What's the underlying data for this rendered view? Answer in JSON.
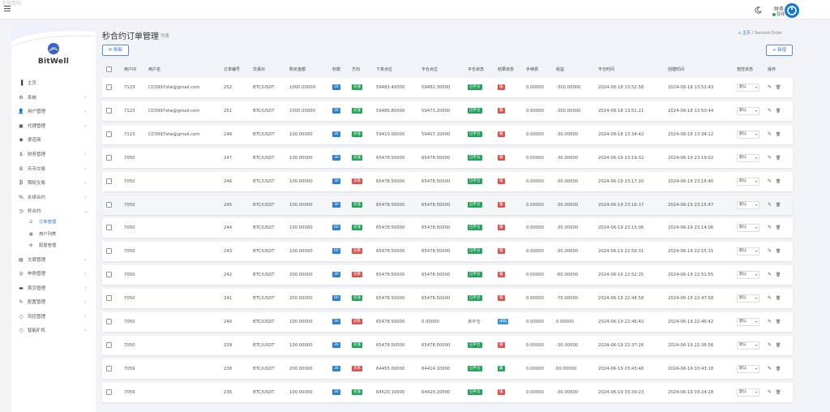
{
  "topbar": {
    "watermark": "无限看网",
    "user_name": "财务",
    "user_status": "在线"
  },
  "sidebar": {
    "brand": "BitWell",
    "items": [
      {
        "icon": "bar-chart-icon",
        "glyph": "▐",
        "label": "主页",
        "chevron": ""
      },
      {
        "icon": "gear-icon",
        "glyph": "⚙",
        "label": "系统",
        "chevron": "‹"
      },
      {
        "icon": "user-icon",
        "glyph": "👤",
        "label": "用户管理",
        "chevron": "‹"
      },
      {
        "icon": "id-card-icon",
        "glyph": "▣",
        "label": "代理管理",
        "chevron": "‹"
      },
      {
        "icon": "user-circle-icon",
        "glyph": "◉",
        "label": "渠道商",
        "chevron": ""
      },
      {
        "icon": "dollar-icon",
        "glyph": "$",
        "label": "财务管理",
        "chevron": "‹"
      },
      {
        "icon": "bitcoin-icon",
        "glyph": "B",
        "label": "币币交易",
        "chevron": "‹"
      },
      {
        "icon": "bitcoin-circle-icon",
        "glyph": "₿",
        "label": "期权交易",
        "chevron": "‹"
      },
      {
        "icon": "link-icon",
        "glyph": "%",
        "label": "永续合约",
        "chevron": "‹"
      },
      {
        "icon": "clock-icon",
        "glyph": "◷",
        "label": "秒合约",
        "chevron": "⌄"
      }
    ],
    "sub_items": [
      {
        "icon": "list-icon",
        "glyph": "☰",
        "label": "订单管理"
      },
      {
        "icon": "table-icon",
        "glyph": "▦",
        "label": "用户列表"
      },
      {
        "icon": "cog-icon",
        "glyph": "⚙",
        "label": "配置管理"
      }
    ],
    "items_after": [
      {
        "icon": "newspaper-icon",
        "glyph": "▤",
        "label": "文章管理",
        "chevron": "‹"
      },
      {
        "icon": "globe-icon",
        "glyph": "◎",
        "label": "申购管理",
        "chevron": "‹"
      },
      {
        "icon": "window-icon",
        "glyph": "▬",
        "label": "首页管理",
        "chevron": "‹"
      },
      {
        "icon": "wrench-icon",
        "glyph": "✎",
        "label": "配置管理",
        "chevron": "‹"
      },
      {
        "icon": "circle-icon",
        "glyph": "○",
        "label": "风控管理",
        "chevron": "‹"
      },
      {
        "icon": "circle-icon",
        "glyph": "○",
        "label": "智能矿机",
        "chevron": "‹"
      }
    ]
  },
  "page": {
    "title": "秒合约订单管理",
    "subtitle": "列表",
    "crumb_home": "主页",
    "crumb_sep": "/",
    "crumb_current": "Second-Order",
    "refresh_label": "刷新",
    "add_label": "新增"
  },
  "table": {
    "headers": [
      "用户ID",
      "用户名",
      "订单编号",
      "交易对",
      "购买金额",
      "秒数",
      "方向",
      "下单点位",
      "平仓点位",
      "平仓状态",
      "结果状态",
      "手续费",
      "收益",
      "平仓时间",
      "创建时间",
      "管控状态",
      "操作"
    ],
    "rows": [
      {
        "uid": "7123",
        "uname": "CD3997stw@gmail.com",
        "oid": "252",
        "pair": "BTC/USDT",
        "amount": "1000.00000",
        "secs": "30",
        "dir": "买涨",
        "dir_type": "up",
        "open": "59481.40000",
        "close": "59482.30000",
        "close_state": "已平仓",
        "close_type": "done",
        "result": "输",
        "result_type": "lose",
        "fee": "0.00000",
        "profit": "-300.00000",
        "ctime": "2024-08-18 13:52:58",
        "created": "2024-08-18 13:52:43",
        "control": "默认"
      },
      {
        "uid": "7123",
        "uname": "CD3997stw@gmail.com",
        "oid": "251",
        "pair": "BTC/USDT",
        "amount": "1000.00000",
        "secs": "30",
        "dir": "买涨",
        "dir_type": "up",
        "open": "59486.80000",
        "close": "59473.20000",
        "close_state": "已平仓",
        "close_type": "done",
        "result": "输",
        "result_type": "lose",
        "fee": "0.00000",
        "profit": "-300.00000",
        "ctime": "2024-08-18 13:51:21",
        "created": "2024-08-18 13:50:44",
        "control": "默认"
      },
      {
        "uid": "7123",
        "uname": "CD3997stw@gmail.com",
        "oid": "248",
        "pair": "BTC/USDT",
        "amount": "100.00000",
        "secs": "30",
        "dir": "买涨",
        "dir_type": "up",
        "open": "59410.00000",
        "close": "59407.10000",
        "close_state": "已平仓",
        "close_type": "done",
        "result": "输",
        "result_type": "lose",
        "fee": "0.00000",
        "profit": "-30.00000",
        "ctime": "2024-08-18 13:34:42",
        "created": "2024-08-18 13:34:12",
        "control": "默认"
      },
      {
        "uid": "7050",
        "uname": "",
        "oid": "247",
        "pair": "BTC/USDT",
        "amount": "100.00000",
        "secs": "30",
        "dir": "买涨",
        "dir_type": "up",
        "open": "65478.50000",
        "close": "65478.50000",
        "close_state": "已平仓",
        "close_type": "done",
        "result": "输",
        "result_type": "lose",
        "fee": "0.00000",
        "profit": "-30.00000",
        "ctime": "2024-06-19 23:19:32",
        "created": "2024-06-19 23:19:02",
        "control": "默认"
      },
      {
        "uid": "7050",
        "uname": "",
        "oid": "246",
        "pair": "BTC/USDT",
        "amount": "100.00000",
        "secs": "30",
        "dir": "买跌",
        "dir_type": "down",
        "open": "65478.50000",
        "close": "65478.50000",
        "close_state": "已平仓",
        "close_type": "done",
        "result": "输",
        "result_type": "lose",
        "fee": "0.00000",
        "profit": "-30.00000",
        "ctime": "2024-06-19 23:17:10",
        "created": "2024-06-19 23:16:40",
        "control": "默认"
      },
      {
        "uid": "7050",
        "uname": "",
        "oid": "245",
        "pair": "BTC/USDT",
        "amount": "100.00000",
        "secs": "30",
        "dir": "买涨",
        "dir_type": "up",
        "open": "65478.50000",
        "close": "65478.50000",
        "close_state": "已平仓",
        "close_type": "done",
        "result": "输",
        "result_type": "lose",
        "fee": "0.00000",
        "profit": "-30.00000",
        "ctime": "2024-06-19 23:16:17",
        "created": "2024-06-19 23:15:47",
        "control": "默认"
      },
      {
        "uid": "7050",
        "uname": "",
        "oid": "244",
        "pair": "BTC/USDT",
        "amount": "100.00000",
        "secs": "60",
        "dir": "买涨",
        "dir_type": "up",
        "open": "65478.50000",
        "close": "65478.50000",
        "close_state": "已平仓",
        "close_type": "done",
        "result": "输",
        "result_type": "lose",
        "fee": "0.00000",
        "profit": "-35.00000",
        "ctime": "2024-06-19 23:15:06",
        "created": "2024-06-19 23:14:06",
        "control": "默认"
      },
      {
        "uid": "7050",
        "uname": "",
        "oid": "243",
        "pair": "BTC/USDT",
        "amount": "100.00000",
        "secs": "60",
        "dir": "买跌",
        "dir_type": "down",
        "open": "65478.50000",
        "close": "65478.50000",
        "close_state": "已平仓",
        "close_type": "done",
        "result": "输",
        "result_type": "lose",
        "fee": "0.00000",
        "profit": "-35.00000",
        "ctime": "2024-06-19 22:56:31",
        "created": "2024-06-19 22:55:31",
        "control": "默认"
      },
      {
        "uid": "7050",
        "uname": "",
        "oid": "242",
        "pair": "BTC/USDT",
        "amount": "200.00000",
        "secs": "30",
        "dir": "买跌",
        "dir_type": "down",
        "open": "65478.50000",
        "close": "65478.50000",
        "close_state": "已平仓",
        "close_type": "done",
        "result": "输",
        "result_type": "lose",
        "fee": "0.00000",
        "profit": "-60.00000",
        "ctime": "2024-06-19 22:52:25",
        "created": "2024-06-19 22:51:55",
        "control": "默认"
      },
      {
        "uid": "7050",
        "uname": "",
        "oid": "241",
        "pair": "BTC/USDT",
        "amount": "200.00000",
        "secs": "60",
        "dir": "买涨",
        "dir_type": "up",
        "open": "65478.50000",
        "close": "65478.50000",
        "close_state": "已平仓",
        "close_type": "done",
        "result": "输",
        "result_type": "lose",
        "fee": "0.00000",
        "profit": "-70.00000",
        "ctime": "2024-06-19 22:48:58",
        "created": "2024-06-19 22:47:58",
        "control": "默认"
      },
      {
        "uid": "7050",
        "uname": "",
        "oid": "240",
        "pair": "BTC/USDT",
        "amount": "100.00000",
        "secs": "30",
        "dir": "买跌",
        "dir_type": "down",
        "open": "65478.50000",
        "close": "0.00000",
        "close_state": "未平仓",
        "close_type": "open",
        "result": "未知",
        "result_type": "unknown",
        "fee": "0.00000",
        "profit": "0.00000",
        "ctime": "2024-06-19 22:46:42",
        "created": "2024-06-19 22:46:42",
        "control": "默认"
      },
      {
        "uid": "7050",
        "uname": "",
        "oid": "239",
        "pair": "BTC/USDT",
        "amount": "100.00000",
        "secs": "30",
        "dir": "买涨",
        "dir_type": "up",
        "open": "65478.50000",
        "close": "65478.50000",
        "close_state": "已平仓",
        "close_type": "done",
        "result": "输",
        "result_type": "lose",
        "fee": "0.00000",
        "profit": "-30.00000",
        "ctime": "2024-06-19 22:37:26",
        "created": "2024-06-19 22:36:56",
        "control": "默认"
      },
      {
        "uid": "7059",
        "uname": "",
        "oid": "238",
        "pair": "BTC/USDT",
        "amount": "200.00000",
        "secs": "30",
        "dir": "买跌",
        "dir_type": "down",
        "open": "64455.00000",
        "close": "64414.10000",
        "close_state": "已平仓",
        "close_type": "done",
        "result": "赢",
        "result_type": "win",
        "fee": "0.00000",
        "profit": "60.00000",
        "ctime": "2024-06-19 03:43:48",
        "created": "2024-06-19 03:43:18",
        "control": "默认"
      },
      {
        "uid": "7059",
        "uname": "",
        "oid": "236",
        "pair": "BTC/USDT",
        "amount": "100.00000",
        "secs": "30",
        "dir": "买涨",
        "dir_type": "up",
        "open": "64520.10000",
        "close": "64420.20000",
        "close_state": "已平仓",
        "close_type": "done",
        "result": "输",
        "result_type": "lose",
        "fee": "0.00000",
        "profit": "-30.00000",
        "ctime": "2024-06-19 03:39:23",
        "created": "2024-06-19 03:24:28",
        "control": "默认"
      }
    ]
  }
}
